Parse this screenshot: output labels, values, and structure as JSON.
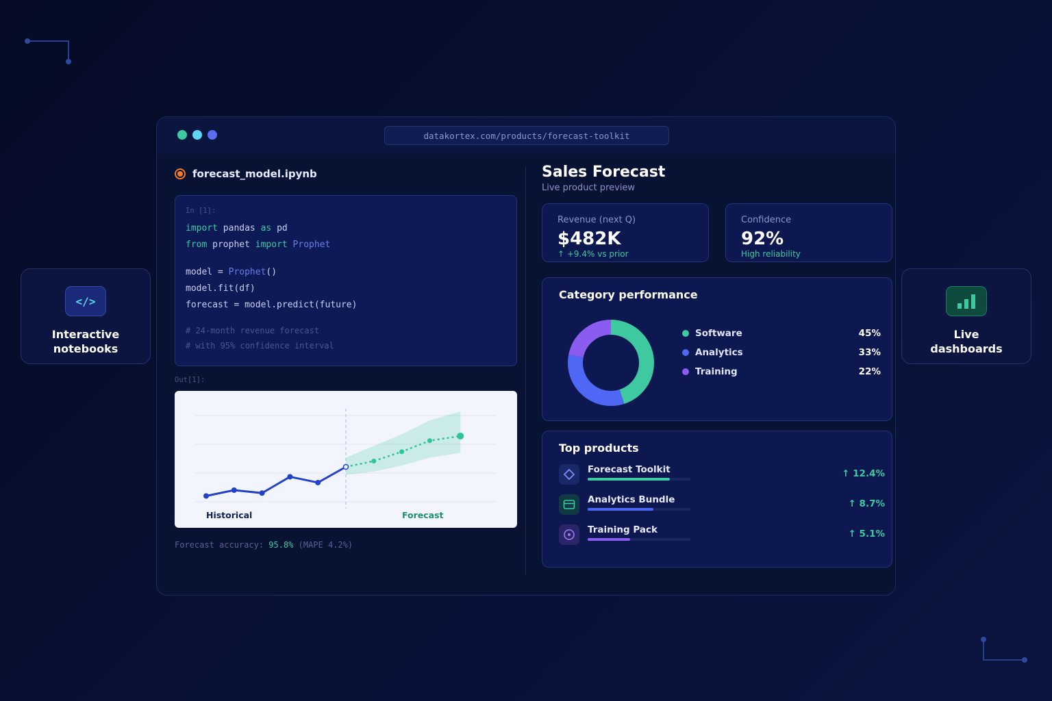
{
  "window": {
    "url": "datakortex.com/products/forecast-toolkit",
    "traffic_lights": [
      "#3ec9a1",
      "#5ed5f7",
      "#5b6df2"
    ]
  },
  "features": [
    {
      "label": "Interactive\nnotebooks",
      "icon": "code-icon",
      "glyph": "</>"
    },
    {
      "label": "Live\ndashboards",
      "icon": "bar-chart-icon"
    }
  ],
  "notebook": {
    "filename": "forecast_model.ipynb",
    "cell_prompt": "In [1]:",
    "code": {
      "l1_kw1": "import",
      "l1_mid": " pandas ",
      "l1_kw2": "as",
      "l1_end": " pd",
      "l2_kw1": "from",
      "l2_mid": " prophet ",
      "l2_kw2": "import",
      "l2_cls": " Prophet",
      "l3_a": "model = ",
      "l3_cls": "Prophet",
      "l3_b": "()",
      "l4": "model.fit(df)",
      "l5": "forecast = model.predict(future)",
      "c1": "# 24-month revenue forecast",
      "c2": "# with 95% confidence interval"
    },
    "output_prompt": "Out[1]:",
    "plot_labels": {
      "historical": "Historical",
      "forecast": "Forecast"
    },
    "accuracy_label": "Forecast accuracy: ",
    "accuracy_value": "95.8%",
    "accuracy_note": " (MAPE 4.2%)"
  },
  "dashboard": {
    "title": "Sales Forecast",
    "subtitle": "Live product preview",
    "kpis": [
      {
        "label": "Revenue (next Q)",
        "value": "$482K",
        "sub": "↑ +9.4% vs prior"
      },
      {
        "label": "Confidence",
        "value": "92%",
        "sub": "High reliability"
      }
    ],
    "category_title": "Category performance",
    "categories": [
      {
        "name": "Software",
        "value": "45%",
        "pct": 45,
        "color": "#3ec9a1"
      },
      {
        "name": "Analytics",
        "value": "33%",
        "pct": 33,
        "color": "#4e68f5"
      },
      {
        "name": "Training",
        "value": "22%",
        "pct": 22,
        "color": "#8b5cf0"
      }
    ],
    "products_title": "Top products",
    "products": [
      {
        "name": "Forecast Toolkit",
        "growth": "↑ 12.4%",
        "bar": 0.8,
        "color": "#3ec9a1",
        "icon": "diamond-icon",
        "icon_bg": "#1a2768",
        "icon_color": "#7d8cf5"
      },
      {
        "name": "Analytics Bundle",
        "growth": "↑ 8.7%",
        "bar": 0.64,
        "color": "#4e68f5",
        "icon": "card-icon",
        "icon_bg": "#0f3a44",
        "icon_color": "#3ec9a1"
      },
      {
        "name": "Training Pack",
        "growth": "↑ 5.1%",
        "bar": 0.41,
        "color": "#8b5cf0",
        "icon": "target-icon",
        "icon_bg": "#2a2468",
        "icon_color": "#9b7cf4"
      }
    ]
  },
  "chart_data": {
    "type": "line",
    "series": [
      {
        "name": "Historical",
        "values": [
          1.0,
          2.0,
          1.5,
          4.3,
          3.3,
          6.0
        ]
      },
      {
        "name": "Forecast",
        "values": [
          6.0,
          7.0,
          8.6,
          10.5,
          11.3
        ]
      }
    ],
    "forecast_band_upper": [
      7.6,
      9.6,
      11.6,
      14.0,
      15.5
    ],
    "forecast_band_lower": [
      4.6,
      5.2,
      6.2,
      7.6,
      8.4
    ],
    "ylim": [
      0,
      16
    ],
    "grid": true
  }
}
